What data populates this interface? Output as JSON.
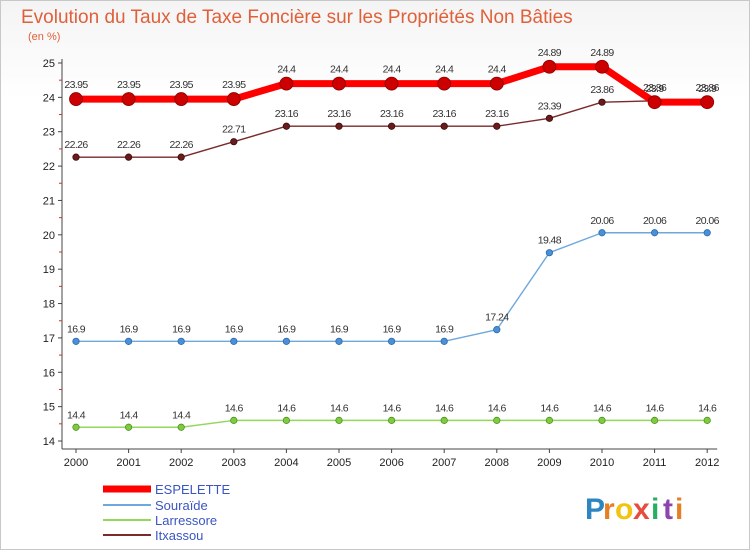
{
  "chart_data": {
    "type": "line",
    "title": "Evolution du Taux de Taxe Foncière sur les Propriétés Non Bâties",
    "ylabel": "(en %)",
    "xlabel": "",
    "ylim": [
      14,
      25
    ],
    "yticks": [
      "14",
      "15",
      "16",
      "17",
      "18",
      "19",
      "20",
      "21",
      "22",
      "23",
      "24",
      "25"
    ],
    "categories": [
      "2000",
      "2001",
      "2002",
      "2003",
      "2004",
      "2005",
      "2006",
      "2007",
      "2008",
      "2009",
      "2010",
      "2011",
      "2012"
    ],
    "series": [
      {
        "name": "ESPELETTE",
        "color": "#ff0000",
        "values": [
          23.95,
          23.95,
          23.95,
          23.95,
          24.4,
          24.4,
          24.4,
          24.4,
          24.4,
          24.89,
          24.89,
          23.86,
          23.86
        ],
        "labels": [
          "23.95",
          "23.95",
          "23.95",
          "23.95",
          "24.4",
          "24.4",
          "24.4",
          "24.4",
          "24.4",
          "24.89",
          "24.89",
          "23.86",
          "23.86"
        ]
      },
      {
        "name": "Souraïde",
        "color": "#6fa8dc",
        "values": [
          16.9,
          16.9,
          16.9,
          16.9,
          16.9,
          16.9,
          16.9,
          16.9,
          17.24,
          19.48,
          20.06,
          20.06,
          20.06
        ],
        "labels": [
          "16.9",
          "16.9",
          "16.9",
          "16.9",
          "16.9",
          "16.9",
          "16.9",
          "16.9",
          "17.24",
          "19.48",
          "20.06",
          "20.06",
          "20.06"
        ]
      },
      {
        "name": "Larressore",
        "color": "#93d85c",
        "values": [
          14.4,
          14.4,
          14.4,
          14.6,
          14.6,
          14.6,
          14.6,
          14.6,
          14.6,
          14.6,
          14.6,
          14.6,
          14.6
        ],
        "labels": [
          "14.4",
          "14.4",
          "14.4",
          "14.6",
          "14.6",
          "14.6",
          "14.6",
          "14.6",
          "14.6",
          "14.6",
          "14.6",
          "14.6",
          "14.6"
        ]
      },
      {
        "name": "Itxassou",
        "color": "#7a2a2a",
        "values": [
          22.26,
          22.26,
          22.26,
          22.71,
          23.16,
          23.16,
          23.16,
          23.16,
          23.16,
          23.39,
          23.86,
          23.9,
          23.9
        ],
        "labels": [
          "22.26",
          "22.26",
          "22.26",
          "22.71",
          "23.16",
          "23.16",
          "23.16",
          "23.16",
          "23.16",
          "23.39",
          "23.86",
          "23.9",
          "23.9"
        ]
      }
    ],
    "legend": {
      "position": "bottom-left"
    },
    "grid": false
  },
  "brand": {
    "name": "Proxiti",
    "letters": [
      "P",
      "r",
      "o",
      "x",
      "i",
      "t",
      "i"
    ],
    "colors": [
      "#2e86c1",
      "#e67e22",
      "#f1c40f",
      "#e74c3c",
      "#27ae60",
      "#8e44ad",
      "#e67e22"
    ]
  }
}
